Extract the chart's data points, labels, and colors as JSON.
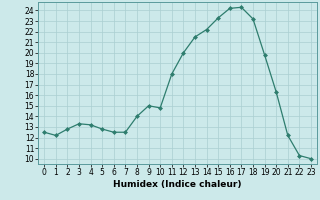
{
  "x": [
    0,
    1,
    2,
    3,
    4,
    5,
    6,
    7,
    8,
    9,
    10,
    11,
    12,
    13,
    14,
    15,
    16,
    17,
    18,
    19,
    20,
    21,
    22,
    23
  ],
  "y": [
    12.5,
    12.2,
    12.8,
    13.3,
    13.2,
    12.8,
    12.5,
    12.5,
    14.0,
    15.0,
    14.8,
    18.0,
    20.0,
    21.5,
    22.2,
    23.3,
    24.2,
    24.3,
    23.2,
    19.8,
    16.3,
    12.2,
    10.3,
    10.0
  ],
  "line_color": "#2e7d6e",
  "marker": "D",
  "marker_size": 2.0,
  "bg_color": "#cce9ea",
  "grid_color": "#aacfd1",
  "xlabel": "Humidex (Indice chaleur)",
  "ylabel": "",
  "xlim": [
    -0.5,
    23.5
  ],
  "ylim": [
    9.5,
    24.8
  ],
  "yticks": [
    10,
    11,
    12,
    13,
    14,
    15,
    16,
    17,
    18,
    19,
    20,
    21,
    22,
    23,
    24
  ],
  "xticks": [
    0,
    1,
    2,
    3,
    4,
    5,
    6,
    7,
    8,
    9,
    10,
    11,
    12,
    13,
    14,
    15,
    16,
    17,
    18,
    19,
    20,
    21,
    22,
    23
  ],
  "tick_fontsize": 5.5,
  "xlabel_fontsize": 6.5,
  "xlabel_fontweight": "bold"
}
